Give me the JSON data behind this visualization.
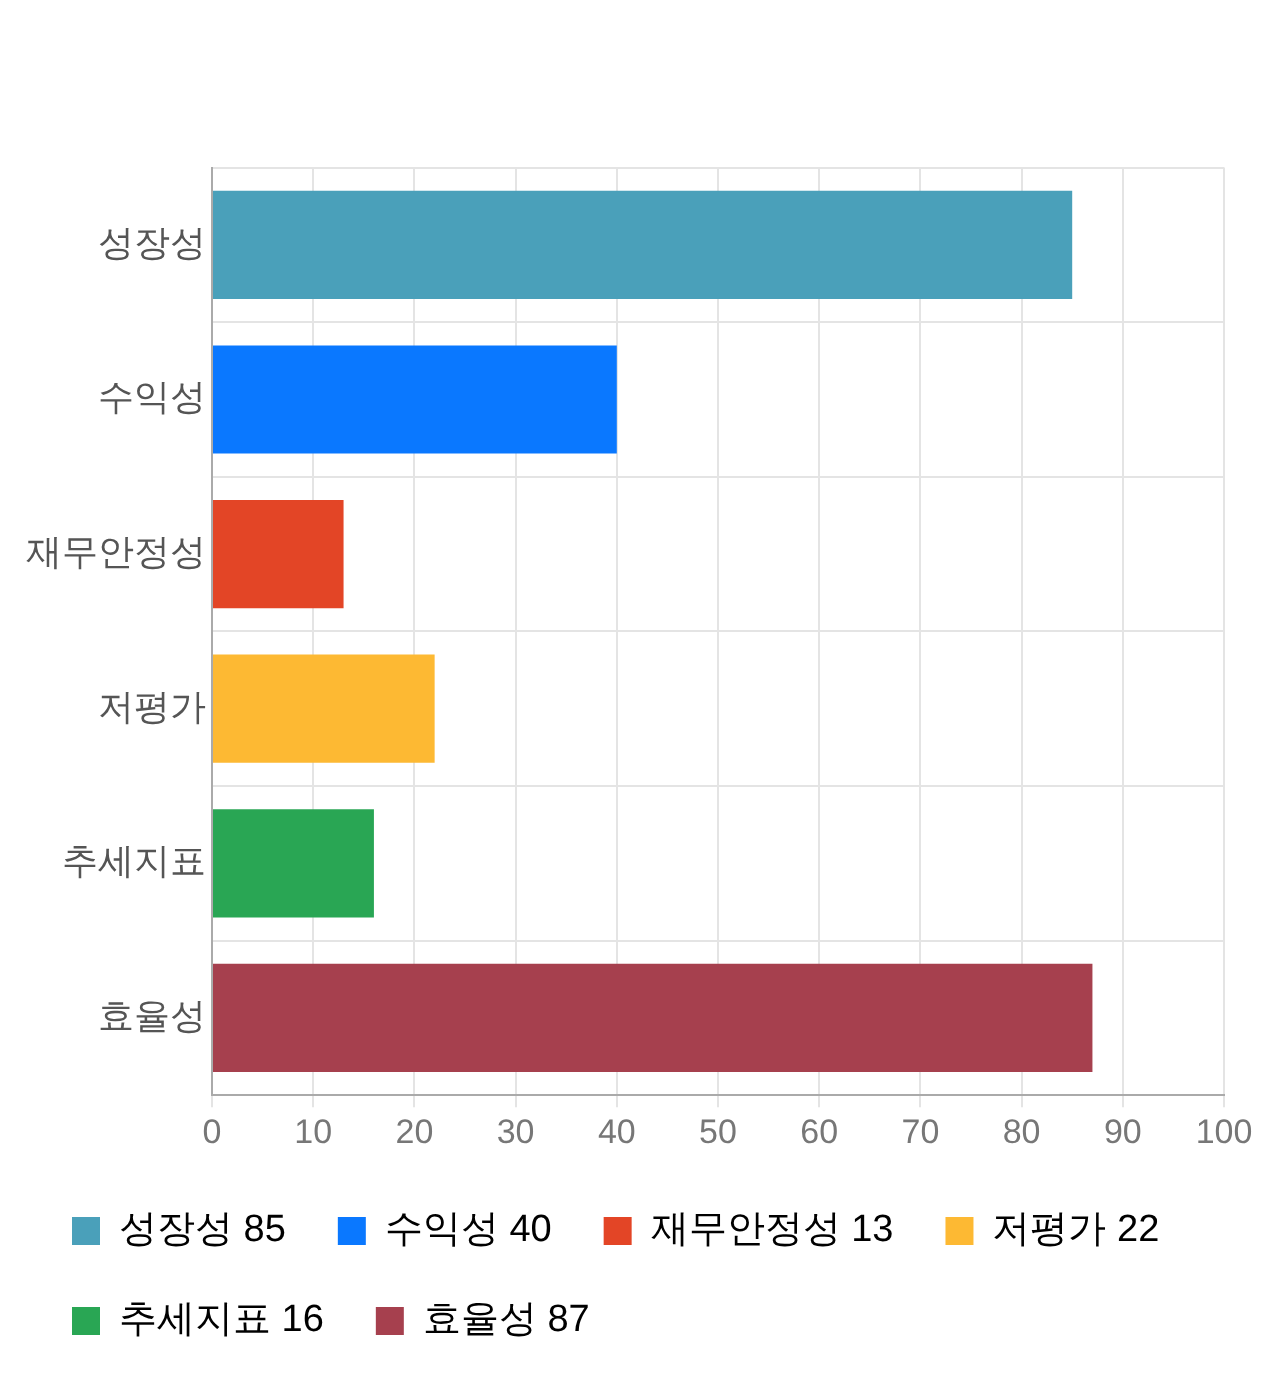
{
  "chart_data": {
    "type": "bar",
    "orientation": "horizontal",
    "categories": [
      "성장성",
      "수익성",
      "재무안정성",
      "저평가",
      "추세지표",
      "효율성"
    ],
    "series": [
      {
        "name": "성장성 85",
        "color": "#4aa0ba",
        "values": [
          85,
          null,
          null,
          null,
          null,
          null
        ]
      },
      {
        "name": "수익성 40",
        "color": "#0a78ff",
        "values": [
          null,
          40,
          null,
          null,
          null,
          null
        ]
      },
      {
        "name": "재무안정성 13",
        "color": "#e34526",
        "values": [
          null,
          null,
          13,
          null,
          null,
          null
        ]
      },
      {
        "name": "저평가 22",
        "color": "#fdb933",
        "values": [
          null,
          null,
          null,
          22,
          null,
          null
        ]
      },
      {
        "name": "추세지표 16",
        "color": "#29a654",
        "values": [
          null,
          null,
          null,
          null,
          16,
          null
        ]
      },
      {
        "name": "효율성 87",
        "color": "#a6404e",
        "values": [
          null,
          null,
          null,
          null,
          null,
          87
        ]
      }
    ],
    "xlim": [
      0,
      100
    ],
    "xticks": [
      0,
      10,
      20,
      30,
      40,
      50,
      60,
      70,
      80,
      90,
      100
    ],
    "grid": true,
    "legend": "bottom"
  }
}
